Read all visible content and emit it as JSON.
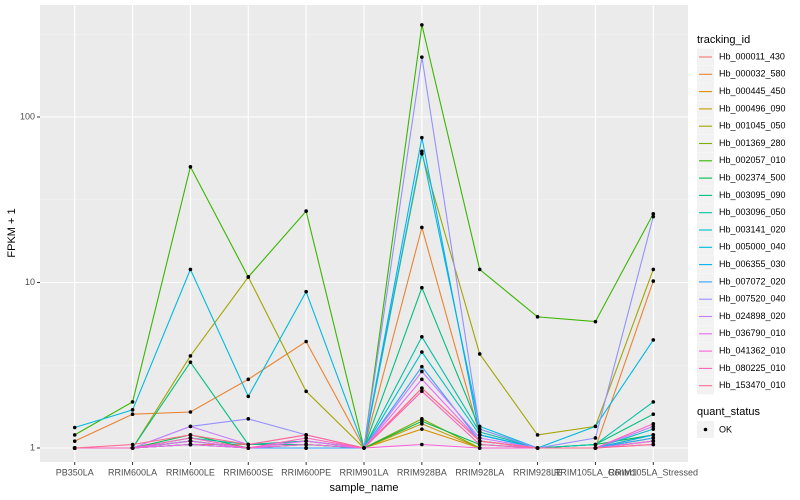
{
  "chart_data": {
    "type": "line",
    "x_label": "sample_name",
    "y_label": "FPKM + 1",
    "categories": [
      "PB350LA",
      "RRIM600LA",
      "RRIM600LE",
      "RRIM600SE",
      "RRIM600PE",
      "RRIM901LA",
      "RRIM928BA",
      "RRIM928LA",
      "RRIM928LE",
      "RRIM105LA_Control",
      "RRIM105LA_Stressed"
    ],
    "ylim": [
      0.823,
      475
    ],
    "yticks": [
      1,
      10,
      100
    ],
    "ylog": true,
    "grid": true,
    "legend_title": "tracking_id",
    "series": [
      {
        "name": "Hb_000011_430",
        "color": "#F8766D",
        "values": [
          1,
          1,
          1.05,
          1.05,
          1.1,
          1,
          2.3,
          1.1,
          1,
          1,
          1.1
        ]
      },
      {
        "name": "Hb_000032_580",
        "color": "#EA8331",
        "values": [
          1.1,
          1.6,
          1.65,
          2.6,
          4.4,
          1,
          21.5,
          1.2,
          1,
          1,
          10.2
        ]
      },
      {
        "name": "Hb_000445_450",
        "color": "#D89000",
        "values": [
          1,
          1,
          1.1,
          1,
          1.05,
          1,
          1.3,
          1,
          1,
          1,
          1.2
        ]
      },
      {
        "name": "Hb_000496_090",
        "color": "#C09B00",
        "values": [
          1,
          1,
          1.05,
          1,
          1,
          1,
          1.4,
          1,
          1,
          1,
          1.1
        ]
      },
      {
        "name": "Hb_001045_050",
        "color": "#A3A500",
        "values": [
          1,
          1,
          3.6,
          10.8,
          2.2,
          1,
          60,
          3.7,
          1.2,
          1.35,
          12
        ]
      },
      {
        "name": "Hb_001369_280",
        "color": "#7CAE00",
        "values": [
          1,
          1,
          1.1,
          1,
          1,
          1,
          1.5,
          1,
          1,
          1,
          1.15
        ]
      },
      {
        "name": "Hb_002057_010",
        "color": "#39B600",
        "values": [
          1.2,
          1.9,
          50,
          10.8,
          27,
          1,
          360,
          12,
          6.2,
          5.8,
          26
        ]
      },
      {
        "name": "Hb_002374_500",
        "color": "#00BB4E",
        "values": [
          1,
          1,
          1.2,
          1,
          1.05,
          1,
          1.45,
          1.05,
          1,
          1.05,
          1.2
        ]
      },
      {
        "name": "Hb_003095_090",
        "color": "#00BF7D",
        "values": [
          1,
          1,
          3.3,
          1.05,
          1.05,
          1,
          9.3,
          1.3,
          1,
          1.05,
          1.6
        ]
      },
      {
        "name": "Hb_003096_050",
        "color": "#00C1A3",
        "values": [
          1,
          1,
          1.15,
          1.05,
          1.1,
          1,
          4.7,
          1.25,
          1,
          1.05,
          1.9
        ]
      },
      {
        "name": "Hb_003141_020",
        "color": "#00BFC4",
        "values": [
          1,
          1,
          1.1,
          1,
          1,
          1,
          3.8,
          1.2,
          1,
          1,
          1.3
        ]
      },
      {
        "name": "Hb_005000_040",
        "color": "#00BAE0",
        "values": [
          1.33,
          1.7,
          12,
          2.05,
          8.8,
          1,
          62,
          1.35,
          1,
          1.35,
          4.5
        ]
      },
      {
        "name": "Hb_006355_030",
        "color": "#00B0F6",
        "values": [
          1,
          1,
          1.05,
          1,
          1,
          1,
          75,
          1.2,
          1,
          1,
          1.2
        ]
      },
      {
        "name": "Hb_007072_020",
        "color": "#35A2FF",
        "values": [
          1,
          1,
          1.05,
          1,
          1,
          1,
          3.1,
          1.1,
          1,
          1,
          1.15
        ]
      },
      {
        "name": "Hb_007520_040",
        "color": "#9590FF",
        "values": [
          1,
          1,
          1.35,
          1.5,
          1.2,
          1,
          230,
          1.3,
          1,
          1.15,
          25
        ]
      },
      {
        "name": "Hb_024898_020",
        "color": "#C77CFF",
        "values": [
          1,
          1,
          1.35,
          1.05,
          1.2,
          1,
          2.9,
          1.15,
          1,
          1,
          1.35
        ]
      },
      {
        "name": "Hb_036790_010",
        "color": "#E76BF3",
        "values": [
          1,
          1,
          1.1,
          1,
          1.1,
          1,
          2.6,
          1.1,
          1,
          1,
          1.1
        ]
      },
      {
        "name": "Hb_041362_010",
        "color": "#FA62DB",
        "values": [
          1,
          1,
          1.05,
          1,
          1.05,
          1,
          1.05,
          1,
          1,
          1,
          1.05
        ]
      },
      {
        "name": "Hb_080225_010",
        "color": "#FF62BC",
        "values": [
          1,
          1,
          1.15,
          1,
          1.15,
          1,
          2.2,
          1.05,
          1,
          1,
          1.4
        ]
      },
      {
        "name": "Hb_153470_010",
        "color": "#FF6C91",
        "values": [
          1,
          1.05,
          1.2,
          1.05,
          1.2,
          1,
          2.3,
          1.1,
          1,
          1,
          1.05
        ]
      }
    ],
    "point_legend_title": "quant_status",
    "point_legend_label": "OK"
  }
}
